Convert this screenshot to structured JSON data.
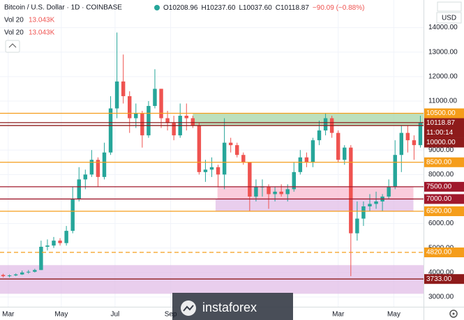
{
  "chart_data": {
    "type": "candlestick",
    "symbol": "Bitcoin / U.S. Dollar · 1D · COINBASE",
    "legend_values": [
      "O10208.96",
      "H10237.60",
      "L10037.60",
      "C10118.87",
      "−90.09 (−0.88%)"
    ],
    "indicators": [
      {
        "name": "Vol 20",
        "value": "13.043K"
      },
      {
        "name": "Vol 20",
        "value": "13.043K"
      }
    ],
    "currency": "USD",
    "countdown": "11:00:14",
    "watermark": "instaforex",
    "up_color": "#26a69a",
    "down_color": "#ef5350",
    "open": [
      3900,
      3850,
      3880,
      3920,
      4000,
      4030,
      4100,
      5050,
      5100,
      5300,
      5200,
      5700,
      7000,
      7800,
      8000,
      8600,
      7900,
      8900,
      10700,
      11800,
      11200,
      10300,
      10500,
      9600,
      10800,
      11500,
      10300,
      10100,
      9600,
      10400,
      10300,
      10000,
      8100,
      8200,
      8300,
      8000,
      9300,
      9200,
      8800,
      8500,
      7100,
      7500,
      7500,
      7200,
      7300,
      7200,
      7400,
      8100,
      8700,
      8500,
      9400,
      9800,
      10300,
      9700,
      8600,
      9100,
      5600,
      6200,
      6700,
      6800,
      6900,
      7100,
      7500,
      8800,
      9700,
      9400,
      9200
    ],
    "high": [
      3950,
      3920,
      3960,
      4080,
      4100,
      4150,
      5300,
      5350,
      5450,
      5400,
      5900,
      7500,
      8300,
      8200,
      9000,
      8700,
      9300,
      11200,
      13800,
      12900,
      11400,
      10900,
      10600,
      11000,
      12300,
      11500,
      10600,
      10400,
      10900,
      10900,
      10400,
      10100,
      8600,
      8700,
      8400,
      10300,
      9500,
      9300,
      8900,
      8500,
      7800,
      7800,
      7600,
      7500,
      7600,
      7600,
      8500,
      9000,
      8900,
      9500,
      10200,
      10500,
      10400,
      9800,
      9200,
      9200,
      6900,
      6900,
      7200,
      7300,
      7200,
      7800,
      9400,
      10000,
      10000,
      9600,
      10400
    ],
    "low": [
      3800,
      3800,
      3850,
      3900,
      3950,
      4000,
      4100,
      4900,
      5000,
      5100,
      5100,
      5600,
      6900,
      7400,
      7900,
      7500,
      7800,
      8800,
      10300,
      10900,
      9700,
      9900,
      9100,
      9500,
      10700,
      9900,
      9800,
      9400,
      9500,
      9800,
      9900,
      8000,
      7700,
      7900,
      7500,
      7400,
      8900,
      8700,
      8400,
      6500,
      6900,
      7100,
      6600,
      6900,
      7100,
      6900,
      7300,
      8000,
      8300,
      8300,
      9200,
      9600,
      9500,
      8500,
      8400,
      3850,
      5300,
      5900,
      6500,
      6600,
      6500,
      7000,
      7400,
      8100,
      8900,
      8600,
      9100
    ],
    "close": [
      3850,
      3880,
      3920,
      4000,
      4030,
      4100,
      5050,
      5100,
      5300,
      5200,
      5700,
      7000,
      7800,
      8000,
      8600,
      7900,
      8900,
      10700,
      11800,
      11200,
      10300,
      10500,
      9600,
      10800,
      11500,
      10300,
      10100,
      9600,
      10400,
      10300,
      10000,
      8100,
      8200,
      8300,
      8000,
      9300,
      9200,
      8800,
      8500,
      7100,
      7500,
      7500,
      7200,
      7300,
      7200,
      7400,
      8100,
      8700,
      8500,
      9400,
      9800,
      10300,
      9700,
      8600,
      9100,
      5600,
      6200,
      6700,
      6800,
      6900,
      7100,
      7500,
      8800,
      9700,
      9400,
      9200,
      10118.87
    ],
    "xlim": [
      0,
      67
    ],
    "xticks": [
      {
        "value": 1.3,
        "label": "Mar"
      },
      {
        "value": 9.7,
        "label": "May"
      },
      {
        "value": 18.2,
        "label": "Jul"
      },
      {
        "value": 27,
        "label": "Sep"
      },
      {
        "value": 53.5,
        "label": "Mar"
      },
      {
        "value": 62.3,
        "label": "May"
      }
    ],
    "ylim": [
      2600,
      14700
    ],
    "yticks": [
      {
        "value": 3000,
        "label": "3000.00"
      },
      {
        "value": 4000,
        "label": "4000.00"
      },
      {
        "value": 5000,
        "label": "5000.00"
      },
      {
        "value": 6000,
        "label": "6000.00"
      },
      {
        "value": 8000,
        "label": "8000.00"
      },
      {
        "value": 9000,
        "label": "9000.00"
      },
      {
        "value": 11000,
        "label": "11000.00"
      },
      {
        "value": 12000,
        "label": "12000.00"
      },
      {
        "value": 13000,
        "label": "13000.00"
      },
      {
        "value": 14000,
        "label": "14000.00"
      }
    ],
    "grid": true,
    "zones": [
      {
        "low": 10000,
        "high": 10500,
        "start": 30.5,
        "end": 67,
        "color": "#a5d6a7"
      },
      {
        "low": 7000,
        "high": 7500,
        "start": 34.4,
        "end": 65.4,
        "color": "#f8bbd0"
      },
      {
        "low": 6500,
        "high": 7000,
        "start": 34.1,
        "end": 65.4,
        "color": "#e1bee7"
      },
      {
        "low": 3130,
        "high": 4300,
        "start": 0,
        "end": 67,
        "color": "#e1bee7"
      }
    ],
    "levels": [
      {
        "value": 10500,
        "label": "10500.00",
        "color": "#f59d1a",
        "dashed": false
      },
      {
        "value": 10000,
        "label": "10000.00",
        "color": "#8e1b1b",
        "dashed": false
      },
      {
        "value": 8500,
        "label": "8500.00",
        "color": "#f59d1a",
        "dashed": false
      },
      {
        "value": 7500,
        "label": "7500.00",
        "color": "#a0182c",
        "dashed": false
      },
      {
        "value": 7000,
        "label": "7000.00",
        "color": "#a0182c",
        "dashed": false
      },
      {
        "value": 6500,
        "label": "6500.00",
        "color": "#f59d1a",
        "dashed": false
      },
      {
        "value": 4820,
        "label": "4820.00",
        "color": "#f59d1a",
        "dashed": true
      },
      {
        "value": 3733,
        "label": "3733.00",
        "color": "#8e1b1b",
        "dashed": false
      }
    ],
    "last_color": "#8e1b1b"
  }
}
